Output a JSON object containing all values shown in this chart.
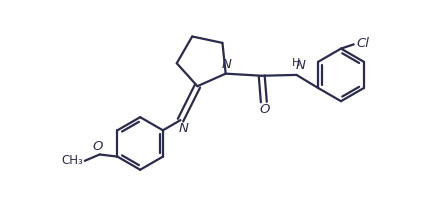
{
  "bg_color": "#ffffff",
  "line_color": "#2b2b4b",
  "line_width": 1.6,
  "font_size": 9.5,
  "figsize": [
    4.27,
    1.99
  ],
  "dpi": 100,
  "xlim": [
    0,
    10
  ],
  "ylim": [
    0,
    4.66
  ]
}
